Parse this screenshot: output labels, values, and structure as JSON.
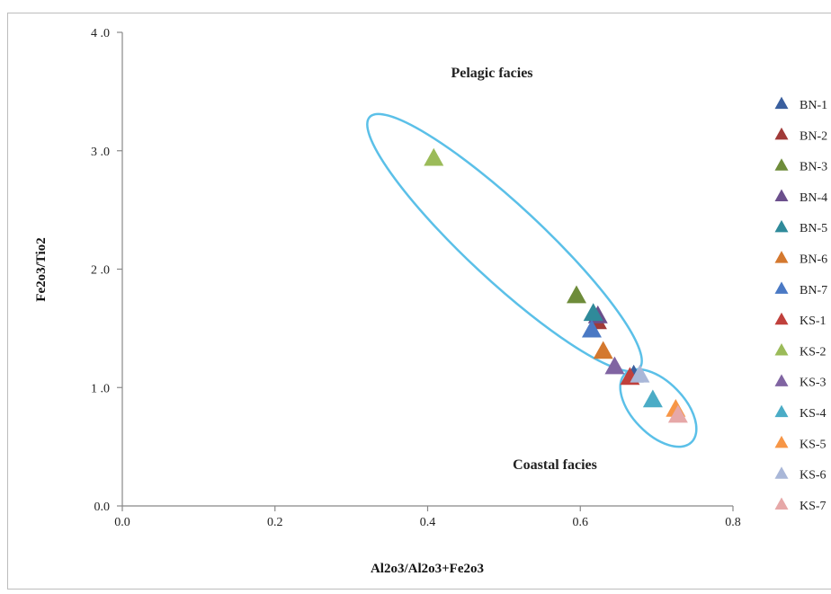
{
  "chart_data": {
    "type": "scatter",
    "title": "",
    "xlabel": "Al2o3/Al2o3+Fe2o3",
    "ylabel": "Fe2o3/Tio2",
    "xlim": [
      0,
      0.8
    ],
    "ylim": [
      0,
      4
    ],
    "x_ticks": [
      "0.0",
      "0.2",
      "0.4",
      "0.6",
      "0.8"
    ],
    "y_ticks": [
      "0.0",
      "1 .0",
      "2 .0",
      "3 .0",
      "4 .0"
    ],
    "grid": false,
    "legend_position": "right",
    "marker": "triangle",
    "annotations": [
      "Pelagic facies",
      "Coastal facies"
    ],
    "series": [
      {
        "name": "BN-1",
        "color": "#3a5f9e",
        "x": 0.67,
        "y": 1.1
      },
      {
        "name": "BN-2",
        "color": "#a03a38",
        "x": 0.622,
        "y": 1.55
      },
      {
        "name": "BN-3",
        "color": "#6e8c3a",
        "x": 0.595,
        "y": 1.77
      },
      {
        "name": "BN-4",
        "color": "#6b4f8c",
        "x": 0.623,
        "y": 1.6
      },
      {
        "name": "BN-5",
        "color": "#2f8a9a",
        "x": 0.617,
        "y": 1.62
      },
      {
        "name": "BN-6",
        "color": "#d4782e",
        "x": 0.63,
        "y": 1.3
      },
      {
        "name": "BN-7",
        "color": "#4a79c4",
        "x": 0.615,
        "y": 1.48
      },
      {
        "name": "KS-1",
        "color": "#c0403c",
        "x": 0.665,
        "y": 1.08
      },
      {
        "name": "KS-2",
        "color": "#9bbb59",
        "x": 0.408,
        "y": 2.93
      },
      {
        "name": "KS-3",
        "color": "#8064a2",
        "x": 0.645,
        "y": 1.17
      },
      {
        "name": "KS-4",
        "color": "#4bacc6",
        "x": 0.695,
        "y": 0.89
      },
      {
        "name": "KS-5",
        "color": "#f79646",
        "x": 0.725,
        "y": 0.81
      },
      {
        "name": "KS-6",
        "color": "#a9b7d8",
        "x": 0.678,
        "y": 1.1
      },
      {
        "name": "KS-7",
        "color": "#e6a8a8",
        "x": 0.728,
        "y": 0.76
      }
    ]
  }
}
